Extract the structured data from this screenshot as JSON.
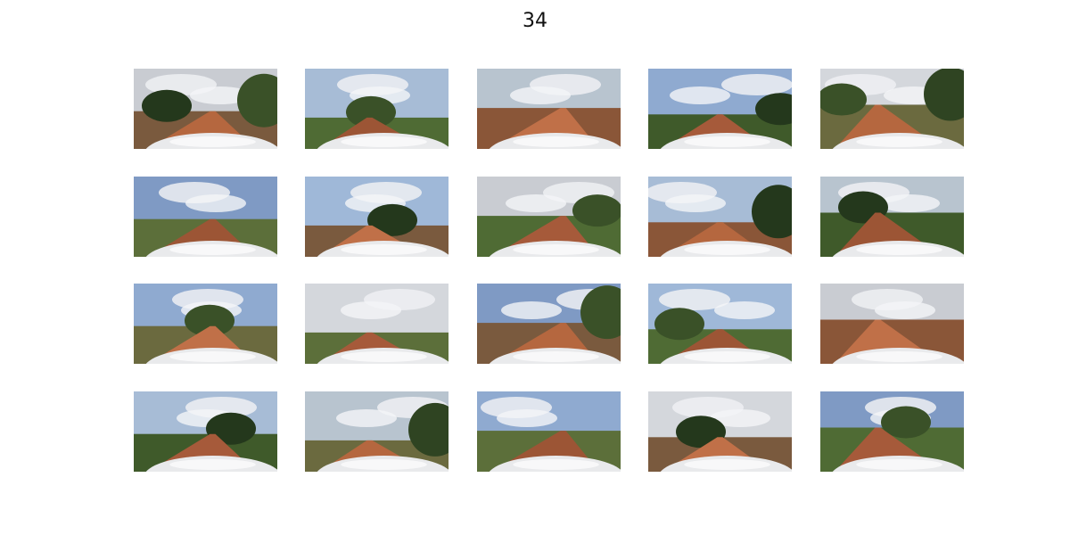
{
  "title": "34"
}
